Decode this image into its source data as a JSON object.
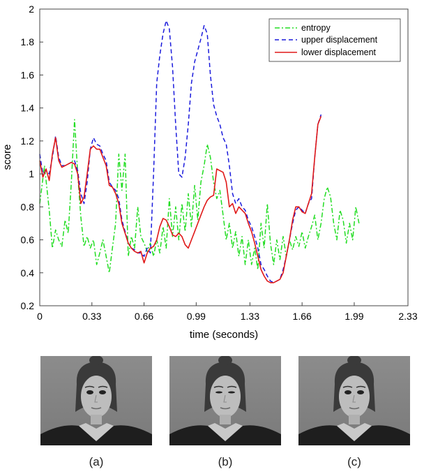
{
  "chart_data": {
    "type": "line",
    "xlabel": "time (seconds)",
    "ylabel": "score",
    "xlim": [
      0,
      2.33
    ],
    "ylim": [
      0.2,
      2
    ],
    "xticks": [
      "0",
      "0.33",
      "0.66",
      "0.99",
      "1.33",
      "1.66",
      "1.99",
      "2.33"
    ],
    "yticks": [
      "0.2",
      "0.4",
      "0.6",
      "0.8",
      "1",
      "1.2",
      "1.4",
      "1.6",
      "1.8",
      "2"
    ],
    "legend_position": "top-right",
    "grid": false,
    "series": [
      {
        "name": "entropy",
        "color": "#22dd22",
        "style": "dashdot",
        "points": [
          [
            0.0,
            0.82
          ],
          [
            0.03,
            1.05
          ],
          [
            0.06,
            0.78
          ],
          [
            0.08,
            0.55
          ],
          [
            0.1,
            0.66
          ],
          [
            0.12,
            0.6
          ],
          [
            0.14,
            0.56
          ],
          [
            0.16,
            0.72
          ],
          [
            0.18,
            0.64
          ],
          [
            0.2,
            0.95
          ],
          [
            0.22,
            1.33
          ],
          [
            0.24,
            1.0
          ],
          [
            0.26,
            0.74
          ],
          [
            0.28,
            0.56
          ],
          [
            0.3,
            0.62
          ],
          [
            0.32,
            0.55
          ],
          [
            0.34,
            0.6
          ],
          [
            0.36,
            0.45
          ],
          [
            0.38,
            0.52
          ],
          [
            0.4,
            0.6
          ],
          [
            0.42,
            0.5
          ],
          [
            0.44,
            0.4
          ],
          [
            0.46,
            0.55
          ],
          [
            0.48,
            0.7
          ],
          [
            0.5,
            1.12
          ],
          [
            0.52,
            0.9
          ],
          [
            0.54,
            1.12
          ],
          [
            0.56,
            0.5
          ],
          [
            0.58,
            0.62
          ],
          [
            0.6,
            0.55
          ],
          [
            0.62,
            0.8
          ],
          [
            0.64,
            0.62
          ],
          [
            0.66,
            0.58
          ],
          [
            0.68,
            0.53
          ],
          [
            0.7,
            0.58
          ],
          [
            0.72,
            0.5
          ],
          [
            0.74,
            0.6
          ],
          [
            0.76,
            0.52
          ],
          [
            0.78,
            0.68
          ],
          [
            0.8,
            0.55
          ],
          [
            0.82,
            0.85
          ],
          [
            0.84,
            0.62
          ],
          [
            0.86,
            0.8
          ],
          [
            0.88,
            0.6
          ],
          [
            0.9,
            0.82
          ],
          [
            0.92,
            0.65
          ],
          [
            0.94,
            0.88
          ],
          [
            0.96,
            0.68
          ],
          [
            0.98,
            0.93
          ],
          [
            1.0,
            0.72
          ],
          [
            1.02,
            0.95
          ],
          [
            1.04,
            1.05
          ],
          [
            1.06,
            1.18
          ],
          [
            1.08,
            1.1
          ],
          [
            1.1,
            0.95
          ],
          [
            1.12,
            0.85
          ],
          [
            1.14,
            0.9
          ],
          [
            1.16,
            0.75
          ],
          [
            1.18,
            0.6
          ],
          [
            1.2,
            0.7
          ],
          [
            1.22,
            0.55
          ],
          [
            1.24,
            0.65
          ],
          [
            1.26,
            0.5
          ],
          [
            1.28,
            0.62
          ],
          [
            1.3,
            0.45
          ],
          [
            1.32,
            0.6
          ],
          [
            1.34,
            0.45
          ],
          [
            1.36,
            0.55
          ],
          [
            1.38,
            0.42
          ],
          [
            1.4,
            0.7
          ],
          [
            1.42,
            0.55
          ],
          [
            1.44,
            0.82
          ],
          [
            1.46,
            0.58
          ],
          [
            1.48,
            0.45
          ],
          [
            1.5,
            0.6
          ],
          [
            1.52,
            0.48
          ],
          [
            1.54,
            0.62
          ],
          [
            1.56,
            0.5
          ],
          [
            1.58,
            0.6
          ],
          [
            1.6,
            0.54
          ],
          [
            1.62,
            0.62
          ],
          [
            1.64,
            0.56
          ],
          [
            1.66,
            0.65
          ],
          [
            1.68,
            0.55
          ],
          [
            1.7,
            0.62
          ],
          [
            1.72,
            0.68
          ],
          [
            1.74,
            0.75
          ],
          [
            1.76,
            0.6
          ],
          [
            1.78,
            0.7
          ],
          [
            1.8,
            0.85
          ],
          [
            1.82,
            0.92
          ],
          [
            1.84,
            0.86
          ],
          [
            1.86,
            0.7
          ],
          [
            1.88,
            0.6
          ],
          [
            1.9,
            0.78
          ],
          [
            1.92,
            0.72
          ],
          [
            1.94,
            0.58
          ],
          [
            1.96,
            0.7
          ],
          [
            1.98,
            0.6
          ],
          [
            2.0,
            0.8
          ],
          [
            2.02,
            0.7
          ]
        ]
      },
      {
        "name": "upper displacement",
        "color": "#1a1adc",
        "style": "dashed",
        "points": [
          [
            0.0,
            1.12
          ],
          [
            0.02,
            1.0
          ],
          [
            0.04,
            1.02
          ],
          [
            0.06,
            1.0
          ],
          [
            0.08,
            1.1
          ],
          [
            0.1,
            1.23
          ],
          [
            0.12,
            1.1
          ],
          [
            0.14,
            1.05
          ],
          [
            0.16,
            1.05
          ],
          [
            0.18,
            1.06
          ],
          [
            0.2,
            1.07
          ],
          [
            0.22,
            1.08
          ],
          [
            0.24,
            1.02
          ],
          [
            0.26,
            0.88
          ],
          [
            0.28,
            0.82
          ],
          [
            0.3,
            0.95
          ],
          [
            0.32,
            1.15
          ],
          [
            0.34,
            1.22
          ],
          [
            0.36,
            1.18
          ],
          [
            0.38,
            1.17
          ],
          [
            0.4,
            1.12
          ],
          [
            0.42,
            1.08
          ],
          [
            0.44,
            0.95
          ],
          [
            0.46,
            0.92
          ],
          [
            0.48,
            0.9
          ],
          [
            0.5,
            0.85
          ],
          [
            0.52,
            0.72
          ],
          [
            0.54,
            0.65
          ],
          [
            0.56,
            0.58
          ],
          [
            0.58,
            0.55
          ],
          [
            0.6,
            0.54
          ],
          [
            0.62,
            0.52
          ],
          [
            0.64,
            0.52
          ],
          [
            0.66,
            0.5
          ],
          [
            0.68,
            0.55
          ],
          [
            0.7,
            0.52
          ],
          [
            0.72,
            1.0
          ],
          [
            0.74,
            1.55
          ],
          [
            0.76,
            1.72
          ],
          [
            0.78,
            1.85
          ],
          [
            0.8,
            1.93
          ],
          [
            0.82,
            1.88
          ],
          [
            0.84,
            1.65
          ],
          [
            0.86,
            1.3
          ],
          [
            0.88,
            1.0
          ],
          [
            0.9,
            0.98
          ],
          [
            0.92,
            1.1
          ],
          [
            0.94,
            1.3
          ],
          [
            0.96,
            1.55
          ],
          [
            0.98,
            1.68
          ],
          [
            1.0,
            1.75
          ],
          [
            1.02,
            1.82
          ],
          [
            1.04,
            1.9
          ],
          [
            1.06,
            1.85
          ],
          [
            1.08,
            1.6
          ],
          [
            1.1,
            1.42
          ],
          [
            1.12,
            1.35
          ],
          [
            1.14,
            1.3
          ],
          [
            1.16,
            1.22
          ],
          [
            1.18,
            1.18
          ],
          [
            1.2,
            1.05
          ],
          [
            1.22,
            0.88
          ],
          [
            1.24,
            0.82
          ],
          [
            1.26,
            0.85
          ],
          [
            1.28,
            0.8
          ],
          [
            1.3,
            0.78
          ],
          [
            1.32,
            0.72
          ],
          [
            1.34,
            0.68
          ],
          [
            1.36,
            0.62
          ],
          [
            1.38,
            0.55
          ],
          [
            1.4,
            0.45
          ],
          [
            1.42,
            0.42
          ],
          [
            1.44,
            0.38
          ],
          [
            1.46,
            0.35
          ],
          [
            1.48,
            0.34
          ],
          [
            1.5,
            0.35
          ],
          [
            1.52,
            0.36
          ],
          [
            1.54,
            0.42
          ],
          [
            1.56,
            0.5
          ],
          [
            1.58,
            0.6
          ],
          [
            1.6,
            0.7
          ],
          [
            1.62,
            0.78
          ],
          [
            1.64,
            0.8
          ],
          [
            1.66,
            0.78
          ],
          [
            1.68,
            0.76
          ],
          [
            1.7,
            0.82
          ],
          [
            1.72,
            0.85
          ],
          [
            1.74,
            1.1
          ],
          [
            1.76,
            1.3
          ],
          [
            1.78,
            1.36
          ]
        ]
      },
      {
        "name": "lower displacement",
        "color": "#e01818",
        "style": "solid",
        "points": [
          [
            0.0,
            1.08
          ],
          [
            0.02,
            0.98
          ],
          [
            0.04,
            1.03
          ],
          [
            0.06,
            0.96
          ],
          [
            0.08,
            1.12
          ],
          [
            0.1,
            1.22
          ],
          [
            0.12,
            1.08
          ],
          [
            0.14,
            1.04
          ],
          [
            0.16,
            1.05
          ],
          [
            0.18,
            1.06
          ],
          [
            0.2,
            1.07
          ],
          [
            0.22,
            1.06
          ],
          [
            0.24,
            1.0
          ],
          [
            0.26,
            0.82
          ],
          [
            0.28,
            0.86
          ],
          [
            0.3,
            1.0
          ],
          [
            0.32,
            1.15
          ],
          [
            0.34,
            1.17
          ],
          [
            0.36,
            1.15
          ],
          [
            0.38,
            1.15
          ],
          [
            0.4,
            1.1
          ],
          [
            0.42,
            1.05
          ],
          [
            0.44,
            0.93
          ],
          [
            0.46,
            0.92
          ],
          [
            0.48,
            0.88
          ],
          [
            0.5,
            0.82
          ],
          [
            0.52,
            0.7
          ],
          [
            0.54,
            0.64
          ],
          [
            0.56,
            0.58
          ],
          [
            0.58,
            0.55
          ],
          [
            0.6,
            0.53
          ],
          [
            0.62,
            0.52
          ],
          [
            0.64,
            0.53
          ],
          [
            0.66,
            0.46
          ],
          [
            0.68,
            0.52
          ],
          [
            0.7,
            0.55
          ],
          [
            0.72,
            0.56
          ],
          [
            0.74,
            0.6
          ],
          [
            0.76,
            0.68
          ],
          [
            0.78,
            0.73
          ],
          [
            0.8,
            0.72
          ],
          [
            0.82,
            0.68
          ],
          [
            0.84,
            0.63
          ],
          [
            0.86,
            0.62
          ],
          [
            0.88,
            0.64
          ],
          [
            0.9,
            0.62
          ],
          [
            0.92,
            0.57
          ],
          [
            0.94,
            0.55
          ],
          [
            0.96,
            0.6
          ],
          [
            0.98,
            0.65
          ],
          [
            1.0,
            0.7
          ],
          [
            1.02,
            0.75
          ],
          [
            1.04,
            0.8
          ],
          [
            1.06,
            0.84
          ],
          [
            1.08,
            0.86
          ],
          [
            1.1,
            0.87
          ],
          [
            1.12,
            1.03
          ],
          [
            1.14,
            1.02
          ],
          [
            1.16,
            1.01
          ],
          [
            1.18,
            0.95
          ],
          [
            1.2,
            0.8
          ],
          [
            1.22,
            0.82
          ],
          [
            1.24,
            0.76
          ],
          [
            1.26,
            0.8
          ],
          [
            1.28,
            0.78
          ],
          [
            1.3,
            0.76
          ],
          [
            1.32,
            0.7
          ],
          [
            1.34,
            0.65
          ],
          [
            1.36,
            0.58
          ],
          [
            1.38,
            0.5
          ],
          [
            1.4,
            0.42
          ],
          [
            1.42,
            0.38
          ],
          [
            1.44,
            0.35
          ],
          [
            1.46,
            0.34
          ],
          [
            1.48,
            0.34
          ],
          [
            1.5,
            0.35
          ],
          [
            1.52,
            0.36
          ],
          [
            1.54,
            0.4
          ],
          [
            1.56,
            0.5
          ],
          [
            1.58,
            0.6
          ],
          [
            1.6,
            0.72
          ],
          [
            1.62,
            0.8
          ],
          [
            1.64,
            0.8
          ],
          [
            1.66,
            0.77
          ],
          [
            1.68,
            0.76
          ],
          [
            1.7,
            0.82
          ],
          [
            1.72,
            0.88
          ],
          [
            1.74,
            1.1
          ],
          [
            1.76,
            1.3
          ],
          [
            1.78,
            1.35
          ]
        ]
      }
    ]
  },
  "photos": [
    {
      "caption": "(a)"
    },
    {
      "caption": "(b)"
    },
    {
      "caption": "(c)"
    }
  ]
}
